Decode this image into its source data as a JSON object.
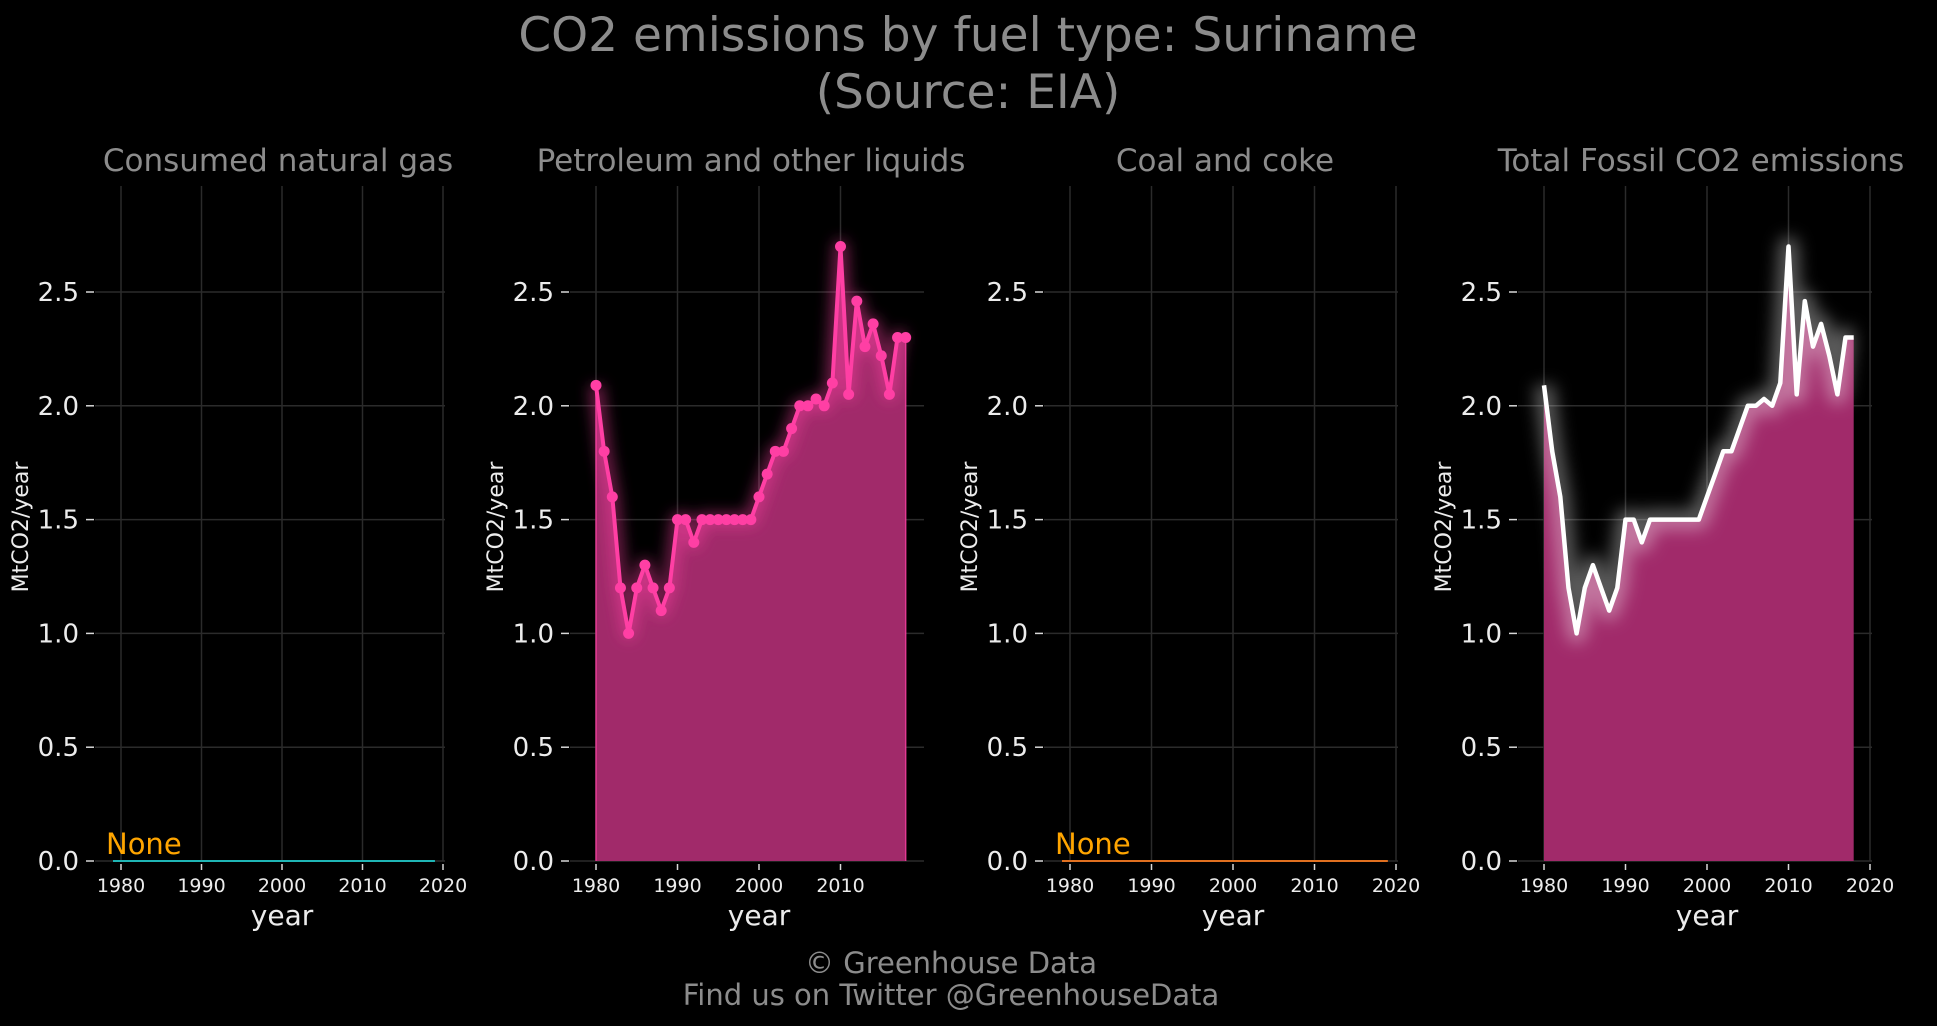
{
  "figure": {
    "title_line1": "CO2 emissions by fuel type: Suriname",
    "title_line2": "(Source: EIA)",
    "footer_line1": "© Greenhouse Data",
    "footer_line2": "Find us on Twitter @GreenhouseData"
  },
  "colors": {
    "background": "#000000",
    "petroleum_line": "#ff3fa4",
    "petroleum_fill": "#a12a6a",
    "natural_gas_line": "#1fb5b5",
    "coal_line": "#e07020",
    "total_line": "#ffffff",
    "none_label": "#ffa500"
  },
  "chart_data": [
    {
      "type": "area",
      "title": "Consumed natural gas",
      "xlabel": "year",
      "ylabel": "MtCO2/year",
      "xlim": [
        1978,
        2020
      ],
      "ylim": [
        0,
        2.85
      ],
      "x_ticks": [
        1980,
        1990,
        2000,
        2010,
        2020
      ],
      "y_ticks": [
        0.0,
        0.5,
        1.0,
        1.5,
        2.0,
        2.5
      ],
      "grid": true,
      "annotation": "None",
      "series": [
        {
          "x": [
            1980,
            2019
          ],
          "values": [
            0,
            0
          ]
        }
      ]
    },
    {
      "type": "area",
      "title": "Petroleum and other liquids",
      "xlabel": "year",
      "ylabel": "MtCO2/year",
      "xlim": [
        1978,
        2020
      ],
      "ylim": [
        0,
        2.85
      ],
      "x_ticks": [
        1980,
        1990,
        2000,
        2010
      ],
      "y_ticks": [
        0.0,
        0.5,
        1.0,
        1.5,
        2.0,
        2.5
      ],
      "grid": true,
      "series": [
        {
          "x": [
            1980,
            1981,
            1982,
            1983,
            1984,
            1985,
            1986,
            1987,
            1988,
            1989,
            1990,
            1991,
            1992,
            1993,
            1994,
            1995,
            1996,
            1997,
            1998,
            1999,
            2000,
            2001,
            2002,
            2003,
            2004,
            2005,
            2006,
            2007,
            2008,
            2009,
            2010,
            2011,
            2012,
            2013,
            2014,
            2015,
            2016,
            2017,
            2018
          ],
          "values": [
            2.09,
            1.8,
            1.6,
            1.2,
            1.0,
            1.2,
            1.3,
            1.2,
            1.1,
            1.2,
            1.5,
            1.5,
            1.4,
            1.5,
            1.5,
            1.5,
            1.5,
            1.5,
            1.5,
            1.5,
            1.6,
            1.7,
            1.8,
            1.8,
            1.9,
            2.0,
            2.0,
            2.03,
            2.0,
            2.1,
            2.7,
            2.05,
            2.46,
            2.26,
            2.36,
            2.22,
            2.05,
            2.3,
            2.3
          ]
        }
      ]
    },
    {
      "type": "area",
      "title": "Coal and coke",
      "xlabel": "year",
      "ylabel": "MtCO2/year",
      "xlim": [
        1978,
        2020
      ],
      "ylim": [
        0,
        2.85
      ],
      "x_ticks": [
        1980,
        1990,
        2000,
        2010,
        2020
      ],
      "y_ticks": [
        0.0,
        0.5,
        1.0,
        1.5,
        2.0,
        2.5
      ],
      "grid": true,
      "annotation": "None",
      "series": [
        {
          "x": [
            1980,
            2019
          ],
          "values": [
            0,
            0
          ]
        }
      ]
    },
    {
      "type": "area",
      "title": "Total Fossil CO2 emissions",
      "xlabel": "year",
      "ylabel": "MtCO2/year",
      "xlim": [
        1978,
        2020
      ],
      "ylim": [
        0,
        2.85
      ],
      "x_ticks": [
        1980,
        1990,
        2000,
        2010,
        2020
      ],
      "y_ticks": [
        0.0,
        0.5,
        1.0,
        1.5,
        2.0,
        2.5
      ],
      "grid": true,
      "series": [
        {
          "x": [
            1980,
            1981,
            1982,
            1983,
            1984,
            1985,
            1986,
            1987,
            1988,
            1989,
            1990,
            1991,
            1992,
            1993,
            1994,
            1995,
            1996,
            1997,
            1998,
            1999,
            2000,
            2001,
            2002,
            2003,
            2004,
            2005,
            2006,
            2007,
            2008,
            2009,
            2010,
            2011,
            2012,
            2013,
            2014,
            2015,
            2016,
            2017,
            2018
          ],
          "values": [
            2.09,
            1.8,
            1.6,
            1.2,
            1.0,
            1.2,
            1.3,
            1.2,
            1.1,
            1.2,
            1.5,
            1.5,
            1.4,
            1.5,
            1.5,
            1.5,
            1.5,
            1.5,
            1.5,
            1.5,
            1.6,
            1.7,
            1.8,
            1.8,
            1.9,
            2.0,
            2.0,
            2.03,
            2.0,
            2.1,
            2.7,
            2.05,
            2.46,
            2.26,
            2.36,
            2.22,
            2.05,
            2.3,
            2.3
          ]
        }
      ]
    }
  ]
}
